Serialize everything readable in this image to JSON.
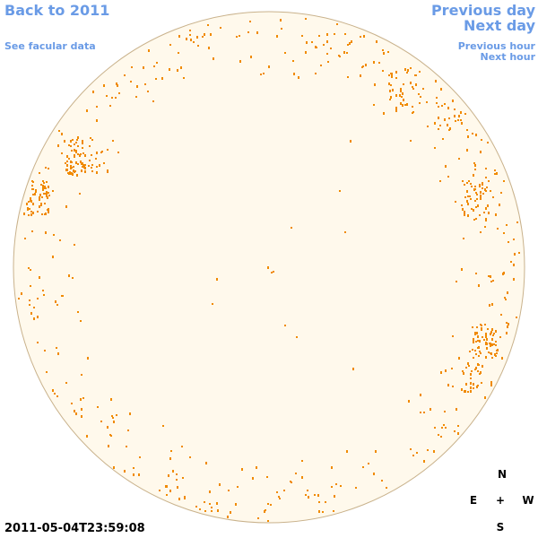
{
  "navigation": {
    "back": "Back to 2011",
    "facular": "See facular data",
    "previous_day": "Previous day",
    "next_day": "Next day",
    "previous_hour": "Previous hour",
    "next_hour": "Next hour"
  },
  "timestamp": "2011-05-04T23:59:08",
  "compass": {
    "north": "N",
    "east": "E",
    "center": "+",
    "west": "W",
    "south": "S"
  }
}
